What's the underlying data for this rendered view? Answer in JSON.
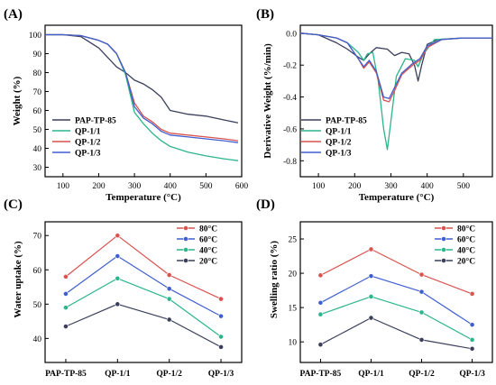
{
  "chart_data": [
    {
      "panel": "(A)",
      "type": "line",
      "xlabel": "Temperature (°C)",
      "ylabel": "Weight (%)",
      "xlim": [
        50,
        600
      ],
      "ylim": [
        25,
        105
      ],
      "xticks": [
        100,
        200,
        300,
        400,
        500,
        600
      ],
      "yticks": [
        30,
        40,
        50,
        60,
        70,
        80,
        90,
        100
      ],
      "legend_position": "lower-left",
      "series": [
        {
          "name": "PAP-TP-85",
          "color": "#3b3f5c",
          "x": [
            50,
            100,
            150,
            200,
            225,
            250,
            275,
            300,
            325,
            350,
            375,
            400,
            450,
            500,
            550,
            590
          ],
          "y": [
            100,
            100,
            99,
            93,
            88,
            83,
            80,
            76,
            74,
            71,
            67,
            60,
            58,
            57,
            55,
            53.5
          ]
        },
        {
          "name": "QP-1/1",
          "color": "#2bb58c",
          "x": [
            50,
            100,
            150,
            200,
            225,
            250,
            275,
            300,
            325,
            350,
            375,
            400,
            450,
            500,
            550,
            590
          ],
          "y": [
            100,
            100,
            99.5,
            97,
            95,
            90,
            79,
            59,
            53,
            48,
            44,
            41,
            38,
            36,
            34.5,
            33.5
          ]
        },
        {
          "name": "QP-1/2",
          "color": "#d9534f",
          "x": [
            50,
            100,
            150,
            200,
            225,
            250,
            275,
            300,
            325,
            350,
            375,
            400,
            450,
            500,
            550,
            590
          ],
          "y": [
            100,
            100,
            99.5,
            97,
            95,
            90,
            80,
            64,
            57,
            54,
            50,
            48,
            47,
            46,
            45,
            44
          ]
        },
        {
          "name": "QP-1/3",
          "color": "#3f5fd0",
          "x": [
            50,
            100,
            150,
            200,
            225,
            250,
            275,
            300,
            325,
            350,
            375,
            400,
            450,
            500,
            550,
            590
          ],
          "y": [
            100,
            100,
            99.5,
            97,
            95,
            90,
            80,
            62,
            56,
            53,
            49,
            47,
            46,
            45,
            44,
            43
          ]
        }
      ]
    },
    {
      "panel": "(B)",
      "type": "line",
      "xlabel": "Temperature (°C)",
      "ylabel": "Derivative Weight (%/min)",
      "xlim": [
        50,
        580
      ],
      "ylim": [
        -0.9,
        0.05
      ],
      "xticks": [
        100,
        200,
        300,
        400,
        500
      ],
      "yticks": [
        0.0,
        -0.2,
        -0.4,
        -0.6,
        -0.8
      ],
      "legend_position": "lower-right",
      "series": [
        {
          "name": "PAP-TP-85",
          "color": "#3b3f5c",
          "x": [
            50,
            100,
            150,
            180,
            210,
            225,
            240,
            260,
            290,
            310,
            330,
            350,
            365,
            375,
            385,
            400,
            430,
            500,
            580
          ],
          "y": [
            0,
            -0.01,
            -0.06,
            -0.1,
            -0.15,
            -0.17,
            -0.13,
            -0.09,
            -0.1,
            -0.14,
            -0.12,
            -0.13,
            -0.2,
            -0.3,
            -0.2,
            -0.07,
            -0.04,
            -0.03,
            -0.03
          ]
        },
        {
          "name": "QP-1/1",
          "color": "#2bb58c",
          "x": [
            50,
            100,
            150,
            180,
            210,
            225,
            235,
            250,
            265,
            280,
            290,
            300,
            315,
            340,
            365,
            375,
            390,
            420,
            500,
            580
          ],
          "y": [
            0,
            -0.01,
            -0.03,
            -0.06,
            -0.12,
            -0.17,
            -0.13,
            -0.12,
            -0.3,
            -0.6,
            -0.73,
            -0.55,
            -0.27,
            -0.16,
            -0.17,
            -0.21,
            -0.13,
            -0.04,
            -0.03,
            -0.03
          ]
        },
        {
          "name": "QP-1/2",
          "color": "#d9534f",
          "x": [
            50,
            100,
            150,
            180,
            210,
            225,
            240,
            260,
            280,
            295,
            310,
            330,
            360,
            380,
            400,
            440,
            500,
            580
          ],
          "y": [
            0,
            -0.01,
            -0.03,
            -0.06,
            -0.16,
            -0.22,
            -0.18,
            -0.25,
            -0.42,
            -0.43,
            -0.36,
            -0.26,
            -0.2,
            -0.17,
            -0.09,
            -0.04,
            -0.03,
            -0.03
          ]
        },
        {
          "name": "QP-1/3",
          "color": "#3f5fd0",
          "x": [
            50,
            100,
            150,
            180,
            210,
            225,
            240,
            260,
            280,
            295,
            310,
            330,
            360,
            380,
            400,
            440,
            500,
            580
          ],
          "y": [
            0,
            -0.01,
            -0.03,
            -0.06,
            -0.16,
            -0.21,
            -0.17,
            -0.24,
            -0.4,
            -0.41,
            -0.34,
            -0.25,
            -0.19,
            -0.16,
            -0.08,
            -0.04,
            -0.03,
            -0.03
          ]
        }
      ]
    },
    {
      "panel": "(C)",
      "type": "line",
      "xlabel": "",
      "ylabel": "Water uptake (%)",
      "categories": [
        "PAP-TP-85",
        "QP-1/1",
        "QP-1/2",
        "QP-1/3"
      ],
      "ylim": [
        33,
        74
      ],
      "yticks": [
        40,
        50,
        60,
        70
      ],
      "legend_position": "top-right",
      "series": [
        {
          "name": "80°C",
          "color": "#d9534f",
          "values": [
            58,
            70,
            58.5,
            51.5
          ]
        },
        {
          "name": "60°C",
          "color": "#3f5fd0",
          "values": [
            53,
            64,
            54.5,
            46.5
          ]
        },
        {
          "name": "40°C",
          "color": "#2bb58c",
          "values": [
            49,
            57.5,
            51.5,
            40.5
          ]
        },
        {
          "name": "20°C",
          "color": "#3b3f5c",
          "values": [
            43.5,
            50,
            45.5,
            37.5
          ]
        }
      ]
    },
    {
      "panel": "(D)",
      "type": "line",
      "xlabel": "",
      "ylabel": "Swelling ratio (%)",
      "categories": [
        "PAP-TP-85",
        "QP-1/1",
        "QP-1/2",
        "QP-1/3"
      ],
      "ylim": [
        7,
        27.5
      ],
      "yticks": [
        10,
        15,
        20,
        25
      ],
      "legend_position": "top-right",
      "series": [
        {
          "name": "80°C",
          "color": "#d9534f",
          "values": [
            19.7,
            23.5,
            19.8,
            17
          ]
        },
        {
          "name": "60°C",
          "color": "#3f5fd0",
          "values": [
            15.7,
            19.6,
            17.3,
            12.5
          ]
        },
        {
          "name": "40°C",
          "color": "#2bb58c",
          "values": [
            14,
            16.6,
            14.3,
            10.3
          ]
        },
        {
          "name": "20°C",
          "color": "#3b3f5c",
          "values": [
            9.6,
            13.5,
            10.3,
            9
          ]
        }
      ]
    }
  ]
}
